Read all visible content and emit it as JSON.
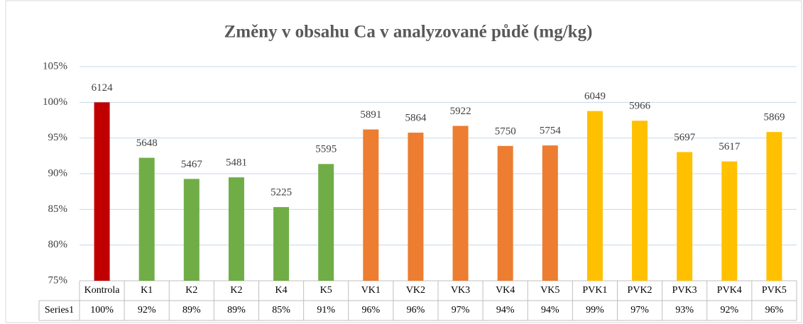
{
  "chart_data": {
    "type": "bar",
    "title": "Změny v obsahu Ca v analyzované půdě (mg/kg)",
    "categories": [
      "Kontrola",
      "K1",
      "K2",
      "K2",
      "K4",
      "K5",
      "VK1",
      "VK2",
      "VK3",
      "VK4",
      "VK5",
      "PVK1",
      "PVK2",
      "PVK3",
      "PVK4",
      "PVK5"
    ],
    "series_name": "Series1",
    "values": [
      100,
      92.23,
      89.27,
      89.49,
      85.32,
      91.36,
      96.2,
      95.75,
      96.7,
      93.89,
      93.96,
      98.78,
      97.42,
      93.03,
      91.72,
      95.84
    ],
    "value_labels": [
      "100%",
      "92%",
      "89%",
      "89%",
      "85%",
      "91%",
      "96%",
      "96%",
      "97%",
      "94%",
      "94%",
      "99%",
      "97%",
      "93%",
      "92%",
      "96%"
    ],
    "amounts": [
      6124,
      5648,
      5467,
      5481,
      5225,
      5595,
      5891,
      5864,
      5922,
      5750,
      5754,
      6049,
      5966,
      5697,
      5617,
      5869
    ],
    "colors": [
      "#c00000",
      "#70ad47",
      "#70ad47",
      "#70ad47",
      "#70ad47",
      "#70ad47",
      "#ed7d31",
      "#ed7d31",
      "#ed7d31",
      "#ed7d31",
      "#ed7d31",
      "#ffc000",
      "#ffc000",
      "#ffc000",
      "#ffc000",
      "#ffc000"
    ],
    "ylim": [
      75,
      105
    ],
    "yticks": [
      {
        "value": 75,
        "label": "75%"
      },
      {
        "value": 80,
        "label": "80%"
      },
      {
        "value": 85,
        "label": "85%"
      },
      {
        "value": 90,
        "label": "90%"
      },
      {
        "value": 95,
        "label": "95%"
      },
      {
        "value": 100,
        "label": "100%"
      },
      {
        "value": 105,
        "label": "105%"
      }
    ],
    "grid": true
  }
}
